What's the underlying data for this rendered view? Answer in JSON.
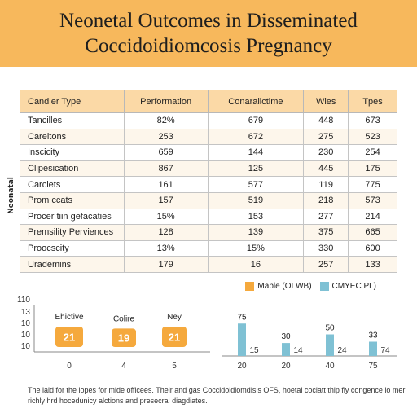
{
  "header": {
    "title_line1": "Neonetal Outcomes in Disseminated",
    "title_line2": "Coccidoidiomcosis Pregnancy",
    "bg_color": "#f7b85c"
  },
  "side_label": "Neonatal",
  "table": {
    "columns": [
      "Candier Type",
      "Performation",
      "Conaralictime",
      "Wies",
      "Tpes"
    ],
    "rows": [
      [
        "Tancilles",
        "82%",
        "679",
        "448",
        "673"
      ],
      [
        "Careltons",
        "253",
        "672",
        "275",
        "523"
      ],
      [
        "Inscicity",
        "659",
        "144",
        "230",
        "254"
      ],
      [
        "Clipesication",
        "867",
        "125",
        "445",
        "175"
      ],
      [
        "Carclets",
        "161",
        "577",
        "119",
        "775"
      ],
      [
        "Prom ccats",
        "157",
        "519",
        "218",
        "573"
      ],
      [
        "Procer tiin gefacaties",
        "15%",
        "153",
        "277",
        "214"
      ],
      [
        "Premsility Perviences",
        "128",
        "139",
        "375",
        "665"
      ],
      [
        "Proocscity",
        "13%",
        "15%",
        "330",
        "600"
      ],
      [
        "Urademins",
        "179",
        "16",
        "257",
        "133"
      ]
    ],
    "header_color": "#fbd9a6"
  },
  "legend": [
    {
      "label": "Maple (OI WB)",
      "color": "#f5a93d"
    },
    {
      "label": "CMYEC PL)",
      "color": "#7fc1d4"
    }
  ],
  "chart_data": [
    {
      "type": "bar",
      "y_ticks": [
        "110",
        "13",
        "10",
        "10",
        "10"
      ],
      "x_ticks": [
        "0",
        "4",
        "5"
      ],
      "categories": [
        "Ehictive",
        "Colire",
        "Ney"
      ],
      "values": [
        21,
        19,
        21
      ],
      "value_labels": [
        "21",
        "19",
        "21"
      ],
      "color": "#f5a93d"
    },
    {
      "type": "bar",
      "x_ticks": [
        "20",
        "20",
        "40",
        "75"
      ],
      "series": [
        {
          "values": [
            75,
            30,
            50,
            33
          ],
          "value_labels": [
            "75",
            "30",
            "50",
            "33"
          ],
          "color": "#7fc1d4"
        },
        {
          "values": [
            15,
            14,
            24,
            74
          ],
          "value_labels": [
            "15",
            "14",
            "24",
            "74"
          ]
        }
      ]
    }
  ],
  "footnote": "The laid for the lopes for mide officees. Their and gas Coccidoidiomdisis OFS, hoetal coclatt thip fiy congence lo mer richly hrd hocedunicy alctions and presecral diagdiates."
}
